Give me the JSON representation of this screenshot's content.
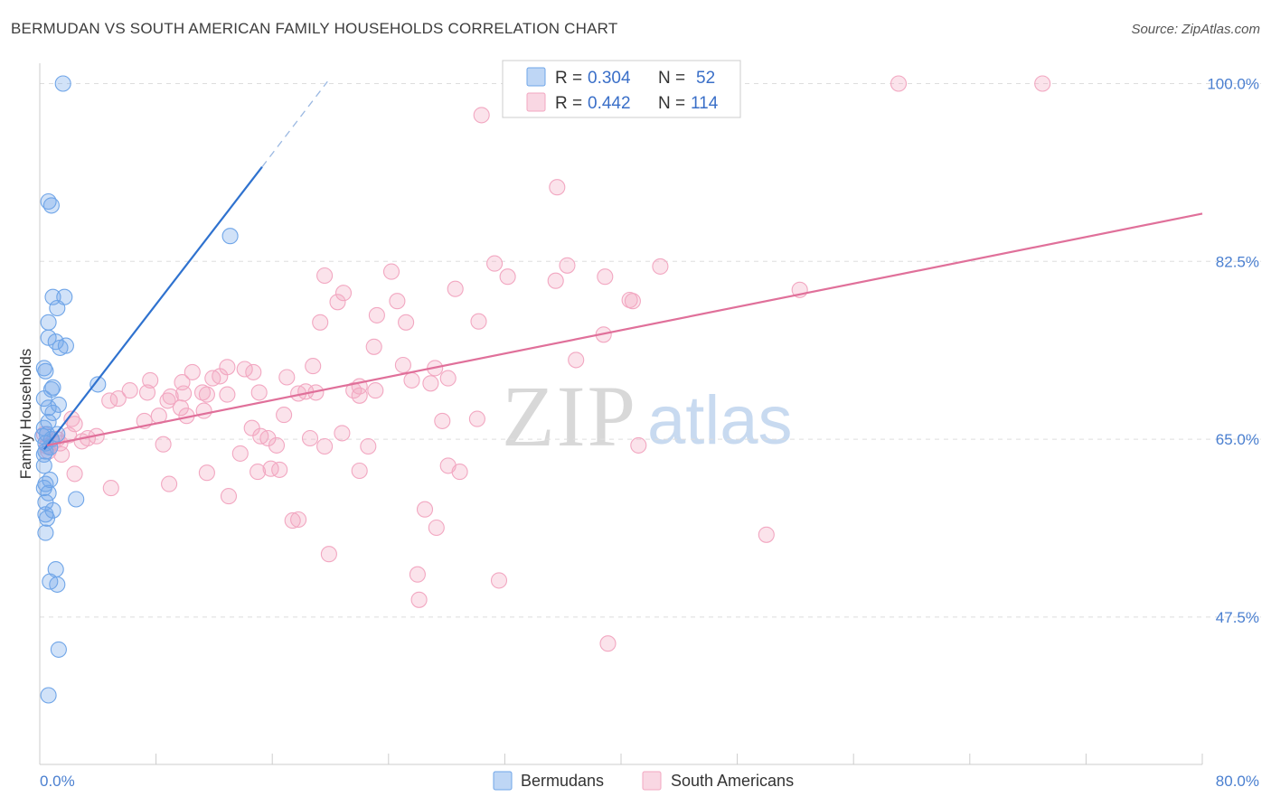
{
  "title": "BERMUDAN VS SOUTH AMERICAN FAMILY HOUSEHOLDS CORRELATION CHART",
  "source": "Source: ZipAtlas.com",
  "watermark": {
    "zip": "ZIP",
    "atlas": "atlas"
  },
  "chart_data": {
    "type": "scatter",
    "xlabel": "",
    "ylabel": "Family Households",
    "xlim": [
      0,
      80
    ],
    "ylim": [
      33.0,
      102.0
    ],
    "x_tick_labels": {
      "left": "0.0%",
      "right": "80.0%"
    },
    "y_ticks": [
      {
        "value": 100.0,
        "label": "100.0%"
      },
      {
        "value": 82.5,
        "label": "82.5%"
      },
      {
        "value": 65.0,
        "label": "65.0%"
      },
      {
        "value": 47.5,
        "label": "47.5%"
      }
    ],
    "legend": {
      "rows": [
        {
          "r_label": "R =",
          "r_value": "0.304",
          "n_label": "N =",
          "n_value": "52",
          "color": "#7fb0ea"
        },
        {
          "r_label": "R =",
          "r_value": "0.442",
          "n_label": "N =",
          "n_value": "114",
          "color": "#f3a6c0"
        }
      ]
    },
    "series": [
      {
        "name": "Bermudans",
        "color": "#6fa5e8",
        "line_color": "#2f72cf",
        "trend": {
          "x0": 0.3,
          "y0": 64.0,
          "x1": 15.3,
          "y1": 91.8,
          "x_dash_end": 19.8,
          "y_dash_end": 100.2
        },
        "points": [
          [
            1.6,
            100.0
          ],
          [
            0.6,
            88.4
          ],
          [
            0.8,
            88.0
          ],
          [
            13.1,
            85.0
          ],
          [
            0.9,
            79.0
          ],
          [
            1.7,
            79.0
          ],
          [
            1.2,
            77.9
          ],
          [
            0.6,
            76.5
          ],
          [
            0.6,
            75.0
          ],
          [
            1.1,
            74.6
          ],
          [
            1.8,
            74.2
          ],
          [
            1.4,
            74.0
          ],
          [
            0.3,
            72.0
          ],
          [
            0.4,
            71.7
          ],
          [
            4.0,
            70.4
          ],
          [
            0.9,
            70.1
          ],
          [
            0.8,
            69.9
          ],
          [
            0.3,
            69.0
          ],
          [
            1.3,
            68.4
          ],
          [
            0.6,
            68.1
          ],
          [
            0.9,
            67.6
          ],
          [
            0.6,
            66.7
          ],
          [
            0.3,
            66.1
          ],
          [
            1.2,
            65.5
          ],
          [
            0.5,
            65.5
          ],
          [
            0.2,
            65.3
          ],
          [
            0.8,
            65.0
          ],
          [
            0.4,
            64.6
          ],
          [
            0.7,
            64.2
          ],
          [
            0.4,
            63.8
          ],
          [
            0.3,
            63.5
          ],
          [
            0.3,
            62.4
          ],
          [
            0.7,
            61.0
          ],
          [
            0.4,
            60.6
          ],
          [
            0.3,
            60.2
          ],
          [
            0.6,
            59.7
          ],
          [
            2.5,
            59.1
          ],
          [
            0.4,
            58.8
          ],
          [
            0.9,
            58.0
          ],
          [
            0.4,
            57.6
          ],
          [
            0.5,
            57.2
          ],
          [
            0.4,
            55.8
          ],
          [
            1.1,
            52.2
          ],
          [
            0.7,
            51.0
          ],
          [
            1.2,
            50.7
          ],
          [
            1.3,
            44.3
          ],
          [
            0.6,
            39.8
          ]
        ]
      },
      {
        "name": "South Americans",
        "color": "#f2a7c1",
        "line_color": "#e0709a",
        "trend": {
          "x0": 0.5,
          "y0": 64.4,
          "x1": 80.0,
          "y1": 87.2
        },
        "points": [
          [
            59.1,
            100.0
          ],
          [
            69.0,
            100.0
          ],
          [
            30.4,
            96.9
          ],
          [
            35.6,
            89.8
          ],
          [
            31.3,
            82.3
          ],
          [
            36.3,
            82.1
          ],
          [
            42.7,
            82.0
          ],
          [
            24.2,
            81.5
          ],
          [
            19.6,
            81.1
          ],
          [
            32.2,
            81.0
          ],
          [
            38.9,
            81.0
          ],
          [
            35.5,
            80.6
          ],
          [
            28.6,
            79.8
          ],
          [
            52.3,
            79.7
          ],
          [
            20.9,
            79.4
          ],
          [
            20.5,
            78.5
          ],
          [
            24.6,
            78.6
          ],
          [
            40.6,
            78.7
          ],
          [
            40.8,
            78.6
          ],
          [
            23.2,
            77.2
          ],
          [
            19.3,
            76.5
          ],
          [
            25.2,
            76.5
          ],
          [
            30.2,
            76.6
          ],
          [
            38.8,
            75.3
          ],
          [
            23.0,
            74.1
          ],
          [
            36.9,
            72.8
          ],
          [
            18.8,
            72.2
          ],
          [
            25.0,
            72.3
          ],
          [
            27.2,
            72.0
          ],
          [
            12.9,
            72.1
          ],
          [
            14.1,
            71.9
          ],
          [
            10.5,
            71.6
          ],
          [
            14.7,
            71.6
          ],
          [
            12.4,
            71.2
          ],
          [
            11.9,
            71.0
          ],
          [
            17.0,
            71.1
          ],
          [
            25.6,
            70.8
          ],
          [
            28.1,
            71.0
          ],
          [
            26.9,
            70.5
          ],
          [
            7.6,
            70.8
          ],
          [
            22.0,
            70.2
          ],
          [
            9.8,
            70.6
          ],
          [
            21.6,
            69.8
          ],
          [
            23.1,
            69.8
          ],
          [
            18.3,
            69.7
          ],
          [
            6.2,
            69.8
          ],
          [
            15.1,
            69.6
          ],
          [
            22.0,
            69.3
          ],
          [
            19.0,
            69.6
          ],
          [
            17.8,
            69.5
          ],
          [
            7.4,
            69.6
          ],
          [
            9.0,
            69.2
          ],
          [
            9.9,
            69.5
          ],
          [
            11.2,
            69.6
          ],
          [
            11.5,
            69.4
          ],
          [
            12.9,
            69.4
          ],
          [
            5.4,
            69.0
          ],
          [
            8.8,
            68.8
          ],
          [
            4.8,
            68.8
          ],
          [
            9.7,
            68.1
          ],
          [
            11.3,
            67.8
          ],
          [
            16.8,
            67.4
          ],
          [
            8.2,
            67.3
          ],
          [
            10.1,
            67.3
          ],
          [
            2.2,
            67.0
          ],
          [
            27.7,
            66.8
          ],
          [
            30.1,
            67.0
          ],
          [
            2.4,
            66.5
          ],
          [
            7.2,
            66.8
          ],
          [
            14.6,
            66.1
          ],
          [
            20.8,
            65.6
          ],
          [
            3.9,
            65.3
          ],
          [
            2.0,
            65.4
          ],
          [
            15.2,
            65.3
          ],
          [
            15.7,
            65.1
          ],
          [
            18.6,
            65.1
          ],
          [
            0.3,
            65.5
          ],
          [
            3.3,
            65.1
          ],
          [
            1.2,
            65.0
          ],
          [
            2.9,
            64.8
          ],
          [
            1.4,
            64.6
          ],
          [
            0.9,
            64.7
          ],
          [
            8.5,
            64.5
          ],
          [
            0.5,
            64.3
          ],
          [
            16.3,
            64.4
          ],
          [
            19.6,
            64.3
          ],
          [
            22.6,
            64.3
          ],
          [
            41.2,
            64.4
          ],
          [
            0.6,
            63.8
          ],
          [
            13.8,
            63.6
          ],
          [
            1.5,
            63.5
          ],
          [
            28.1,
            62.4
          ],
          [
            15.9,
            62.1
          ],
          [
            16.5,
            62.0
          ],
          [
            22.0,
            61.9
          ],
          [
            11.5,
            61.7
          ],
          [
            28.9,
            61.8
          ],
          [
            2.4,
            61.6
          ],
          [
            15.0,
            61.8
          ],
          [
            8.9,
            60.6
          ],
          [
            4.9,
            60.2
          ],
          [
            13.0,
            59.4
          ],
          [
            26.5,
            58.1
          ],
          [
            17.4,
            57.0
          ],
          [
            17.8,
            57.1
          ],
          [
            27.3,
            56.3
          ],
          [
            50.0,
            55.6
          ],
          [
            19.9,
            53.7
          ],
          [
            26.0,
            51.7
          ],
          [
            31.6,
            51.1
          ],
          [
            26.1,
            49.2
          ],
          [
            39.1,
            44.9
          ]
        ]
      }
    ]
  }
}
